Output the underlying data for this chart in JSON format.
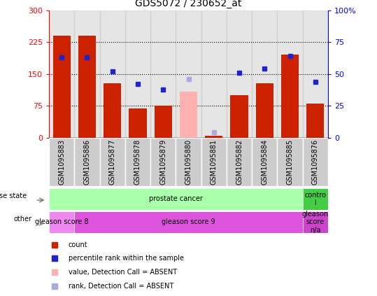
{
  "title": "GDS5072 / 230652_at",
  "samples": [
    "GSM1095883",
    "GSM1095886",
    "GSM1095877",
    "GSM1095878",
    "GSM1095879",
    "GSM1095880",
    "GSM1095881",
    "GSM1095882",
    "GSM1095884",
    "GSM1095885",
    "GSM1095876"
  ],
  "bar_values": [
    240,
    240,
    128,
    68,
    75,
    null,
    5,
    100,
    128,
    195,
    80
  ],
  "bar_absent": [
    null,
    null,
    null,
    null,
    null,
    108,
    null,
    null,
    null,
    null,
    null
  ],
  "rank_values": [
    63,
    63,
    52,
    42,
    38,
    null,
    null,
    51,
    54,
    64,
    44
  ],
  "rank_absent": [
    null,
    null,
    null,
    null,
    null,
    46,
    4,
    null,
    null,
    null,
    null
  ],
  "ylim_left": [
    0,
    300
  ],
  "ylim_right": [
    0,
    100
  ],
  "yticks_left": [
    0,
    75,
    150,
    225,
    300
  ],
  "yticks_right": [
    0,
    25,
    50,
    75,
    100
  ],
  "ytick_labels_left": [
    "0",
    "75",
    "150",
    "225",
    "300"
  ],
  "ytick_labels_right": [
    "0",
    "25",
    "50",
    "75",
    "100%"
  ],
  "hlines": [
    75,
    150,
    225
  ],
  "bar_color": "#cc2200",
  "bar_absent_color": "#ffb0b0",
  "rank_color": "#2222cc",
  "rank_absent_color": "#aaaadd",
  "disease_state_segments": [
    {
      "label": "prostate cancer",
      "start": 0,
      "end": 9,
      "color": "#aaffaa"
    },
    {
      "label": "contro\nl",
      "start": 10,
      "end": 10,
      "color": "#44cc44"
    }
  ],
  "other_segments": [
    {
      "label": "gleason score 8",
      "start": 0,
      "end": 0,
      "color": "#ee88ee"
    },
    {
      "label": "gleason score 9",
      "start": 1,
      "end": 9,
      "color": "#dd55dd"
    },
    {
      "label": "gleason\nscore\nn/a",
      "start": 10,
      "end": 10,
      "color": "#cc44cc"
    }
  ],
  "legend_items": [
    {
      "label": "count",
      "color": "#cc2200"
    },
    {
      "label": "percentile rank within the sample",
      "color": "#2222cc"
    },
    {
      "label": "value, Detection Call = ABSENT",
      "color": "#ffb0b0"
    },
    {
      "label": "rank, Detection Call = ABSENT",
      "color": "#aaaadd"
    }
  ],
  "bar_width": 0.7,
  "col_bg_color": "#cccccc",
  "plot_bg_color": "#ffffff",
  "fig_bg_color": "#ffffff"
}
